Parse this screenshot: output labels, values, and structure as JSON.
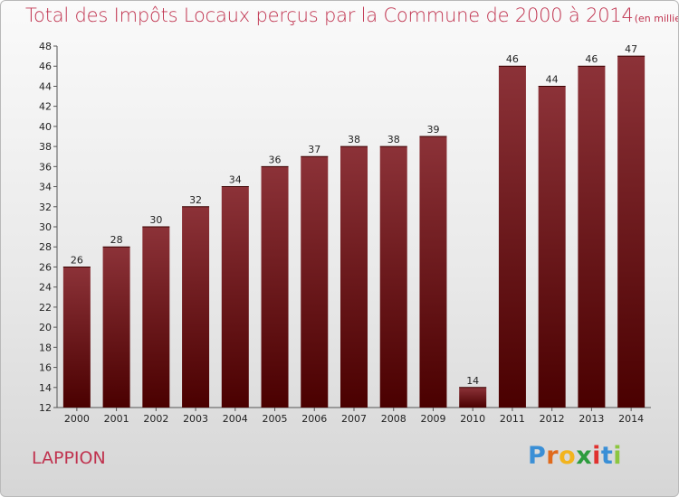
{
  "header": {
    "title": "Total des Impôts Locaux perçus par la Commune de 2000 à 2014",
    "subtitle": "(en milliers d'€)"
  },
  "commune": "LAPPION",
  "logo": {
    "text": "Proxiti",
    "letter_colors": [
      "#3a8fd6",
      "#e06a1c",
      "#f2b41e",
      "#2d9c3e",
      "#e0312f",
      "#3a8fd6",
      "#8cc63f"
    ]
  },
  "colors": {
    "bar_top": "#8c3238",
    "bar_bottom": "#4a0000",
    "title": "#c0334f"
  },
  "chart_data": {
    "type": "bar",
    "title": "Total des Impôts Locaux perçus par la Commune de 2000 à 2014",
    "subtitle": "(en milliers d'€)",
    "xlabel": "",
    "ylabel": "",
    "categories": [
      "2000",
      "2001",
      "2002",
      "2003",
      "2004",
      "2005",
      "2006",
      "2007",
      "2008",
      "2009",
      "2010",
      "2011",
      "2012",
      "2013",
      "2014"
    ],
    "values": [
      26,
      28,
      30,
      32,
      34,
      36,
      37,
      38,
      38,
      39,
      14,
      46,
      44,
      46,
      47
    ],
    "ylim": [
      12,
      48
    ],
    "yticks": [
      12,
      14,
      16,
      18,
      20,
      22,
      24,
      26,
      28,
      30,
      32,
      34,
      36,
      38,
      40,
      42,
      44,
      46,
      48
    ],
    "grid": false,
    "legend": "none"
  }
}
